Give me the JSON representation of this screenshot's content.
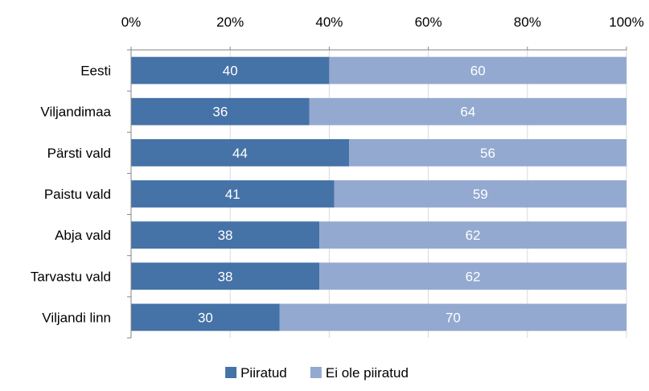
{
  "chart_data": {
    "type": "bar",
    "orientation": "horizontal",
    "stacked": "percent",
    "categories": [
      "Eesti",
      "Viljandimaa",
      "Pärsti vald",
      "Paistu vald",
      "Abja vald",
      "Tarvastu vald",
      "Viljandi linn"
    ],
    "series": [
      {
        "name": "Piiratud",
        "values": [
          40,
          36,
          44,
          41,
          38,
          38,
          30
        ],
        "color": "#4572a7"
      },
      {
        "name": "Ei ole piiratud",
        "values": [
          60,
          64,
          56,
          59,
          62,
          62,
          70
        ],
        "color": "#93a9d0"
      }
    ],
    "x_ticks": [
      "0%",
      "20%",
      "40%",
      "60%",
      "80%",
      "100%"
    ],
    "xlim": [
      0,
      100
    ],
    "x_axis_position": "top",
    "grid": true,
    "legend": "bottom",
    "data_labels": true,
    "title": "",
    "xlabel": "",
    "ylabel": ""
  }
}
